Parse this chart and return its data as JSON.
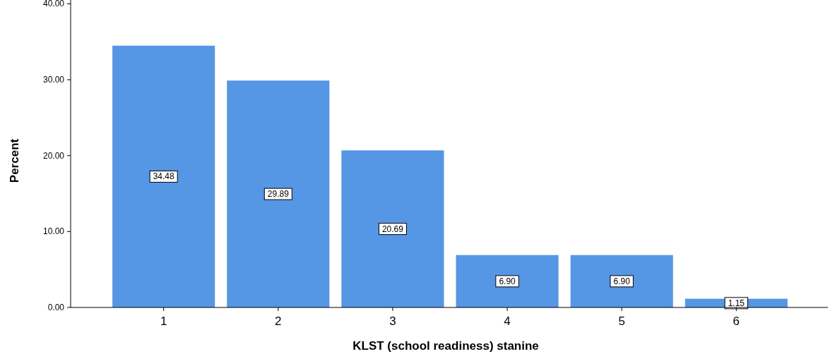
{
  "chart_data": {
    "type": "bar",
    "xlabel": "KLST (school readiness) stanine",
    "ylabel": "Percent",
    "categories": [
      "1",
      "2",
      "3",
      "4",
      "5",
      "6"
    ],
    "values": [
      34.48,
      29.89,
      20.69,
      6.9,
      6.9,
      1.15
    ],
    "value_labels": [
      "34.48",
      "29.89",
      "20.69",
      "6.90",
      "6.90",
      "1.15"
    ],
    "color": "#5596e5",
    "ylim": [
      0,
      40.5
    ],
    "yticks": [
      {
        "value": 0,
        "label": "0.00"
      },
      {
        "value": 10,
        "label": "10.00"
      },
      {
        "value": 20,
        "label": "20.00"
      },
      {
        "value": 30,
        "label": "30.00"
      },
      {
        "value": 40,
        "label": "40.00"
      }
    ],
    "grid": false
  }
}
